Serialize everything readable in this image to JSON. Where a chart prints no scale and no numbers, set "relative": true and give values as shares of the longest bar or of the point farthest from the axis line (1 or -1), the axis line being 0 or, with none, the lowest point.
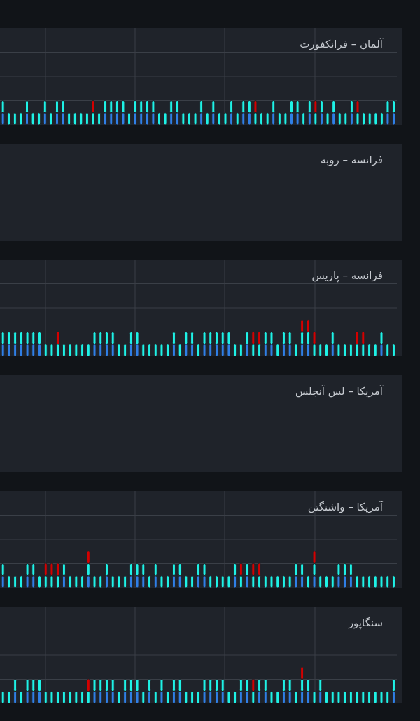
{
  "chart_data": [
    {
      "type": "bar",
      "title": "آلمان – فرانکفورت",
      "relative": true,
      "stacked": true,
      "grid": true,
      "legend": false,
      "categories": [
        null,
        null,
        null,
        null,
        null,
        null,
        null,
        null,
        null,
        null,
        null,
        null,
        null,
        null,
        null,
        null,
        null,
        null,
        null,
        null,
        null,
        null,
        null,
        null,
        null,
        null,
        null,
        null,
        null,
        null,
        null,
        null,
        null,
        null,
        null,
        null,
        null,
        null,
        null,
        null,
        null,
        null,
        null,
        null,
        null,
        null,
        null,
        null,
        null,
        null,
        null,
        null,
        null,
        null,
        null,
        null,
        null,
        null,
        null,
        null,
        null,
        null,
        null,
        null,
        null,
        null
      ],
      "series": [
        {
          "color": "#2f7fe6",
          "values": [
            0.5,
            null,
            null,
            null,
            0.5,
            null,
            null,
            0.5,
            null,
            0.5,
            0.5,
            null,
            null,
            null,
            null,
            null,
            null,
            0.5,
            0.5,
            0.5,
            0.5,
            null,
            0.5,
            0.5,
            0.5,
            0.5,
            null,
            null,
            0.5,
            0.5,
            null,
            null,
            null,
            0.5,
            null,
            0.5,
            null,
            null,
            0.5,
            null,
            0.5,
            0.5,
            null,
            null,
            null,
            0.5,
            null,
            null,
            0.5,
            0.5,
            null,
            0.5,
            null,
            0.5,
            null,
            0.5,
            null,
            null,
            0.5,
            null,
            null,
            null,
            null,
            null,
            0.5,
            0.5
          ]
        },
        {
          "color": "#1ef2e6",
          "values": [
            0.5,
            0.5,
            0.5,
            0.5,
            0.5,
            0.5,
            0.5,
            0.5,
            0.5,
            0.5,
            0.5,
            0.5,
            0.5,
            0.5,
            0.5,
            0.5,
            0.5,
            0.5,
            0.5,
            0.5,
            0.5,
            0.5,
            0.5,
            0.5,
            0.5,
            0.5,
            0.5,
            0.5,
            0.5,
            0.5,
            0.5,
            0.5,
            0.5,
            0.5,
            0.5,
            0.5,
            0.5,
            0.5,
            0.5,
            0.5,
            0.5,
            0.5,
            0.5,
            0.5,
            0.5,
            0.5,
            0.5,
            0.5,
            0.5,
            0.5,
            0.5,
            0.5,
            0.5,
            0.5,
            0.5,
            0.5,
            0.5,
            0.5,
            0.5,
            0.5,
            0.5,
            0.5,
            0.5,
            0.5,
            0.5,
            0.5
          ]
        },
        {
          "color": "#d40000",
          "values": [
            null,
            null,
            null,
            null,
            null,
            null,
            null,
            null,
            null,
            null,
            null,
            null,
            null,
            null,
            null,
            0.5,
            null,
            null,
            null,
            null,
            null,
            null,
            null,
            null,
            null,
            null,
            null,
            null,
            null,
            null,
            null,
            null,
            null,
            null,
            null,
            null,
            null,
            null,
            null,
            null,
            null,
            null,
            0.5,
            null,
            null,
            null,
            null,
            null,
            null,
            null,
            null,
            null,
            0.5,
            null,
            null,
            null,
            null,
            null,
            null,
            0.5,
            null,
            null,
            null,
            null,
            null,
            null
          ]
        }
      ]
    },
    {
      "type": "other",
      "title": "فرانسه – روبه"
    },
    {
      "type": "bar",
      "title": "فرانسه – پاریس",
      "relative": true,
      "stacked": true,
      "grid": true,
      "legend": false,
      "categories": [
        null,
        null,
        null,
        null,
        null,
        null,
        null,
        null,
        null,
        null,
        null,
        null,
        null,
        null,
        null,
        null,
        null,
        null,
        null,
        null,
        null,
        null,
        null,
        null,
        null,
        null,
        null,
        null,
        null,
        null,
        null,
        null,
        null,
        null,
        null,
        null,
        null,
        null,
        null,
        null,
        null,
        null,
        null,
        null,
        null,
        null,
        null,
        null,
        null,
        null,
        null,
        null,
        null,
        null,
        null,
        null,
        null,
        null,
        null,
        null,
        null,
        null,
        null,
        null,
        null
      ],
      "series": [
        {
          "color": "#2f7fe6",
          "values": [
            0.33,
            0.33,
            0.33,
            0.33,
            0.33,
            0.33,
            0.33,
            null,
            null,
            null,
            null,
            null,
            null,
            null,
            null,
            0.33,
            0.33,
            0.33,
            0.33,
            null,
            null,
            0.33,
            0.33,
            null,
            null,
            null,
            null,
            null,
            0.33,
            null,
            0.33,
            0.33,
            null,
            0.33,
            0.33,
            0.33,
            0.33,
            0.33,
            null,
            null,
            0.33,
            null,
            null,
            0.33,
            0.33,
            null,
            0.33,
            0.33,
            null,
            0.33,
            0.33,
            null,
            null,
            null,
            0.33,
            null,
            null,
            null,
            null,
            null,
            null,
            null,
            0.33,
            null,
            null
          ]
        },
        {
          "color": "#1ef2e6",
          "values": [
            0.33,
            0.33,
            0.33,
            0.33,
            0.33,
            0.33,
            0.33,
            0.33,
            0.33,
            0.33,
            0.33,
            0.33,
            0.33,
            0.33,
            0.33,
            0.33,
            0.33,
            0.33,
            0.33,
            0.33,
            0.33,
            0.33,
            0.33,
            0.33,
            0.33,
            0.33,
            0.33,
            0.33,
            0.33,
            0.33,
            0.33,
            0.33,
            0.33,
            0.33,
            0.33,
            0.33,
            0.33,
            0.33,
            0.33,
            0.33,
            0.33,
            0.33,
            0.33,
            0.33,
            0.33,
            0.33,
            0.33,
            0.33,
            0.33,
            0.33,
            0.33,
            0.33,
            0.33,
            0.33,
            0.33,
            0.33,
            0.33,
            0.33,
            0.33,
            0.33,
            0.33,
            0.33,
            0.33,
            0.33,
            0.33
          ]
        },
        {
          "color": "#d40000",
          "values": [
            null,
            null,
            null,
            null,
            null,
            null,
            null,
            null,
            null,
            0.34,
            null,
            null,
            null,
            null,
            null,
            null,
            null,
            null,
            null,
            null,
            null,
            null,
            null,
            null,
            null,
            null,
            null,
            null,
            null,
            null,
            null,
            null,
            null,
            null,
            null,
            null,
            null,
            null,
            null,
            null,
            null,
            0.34,
            0.34,
            null,
            null,
            null,
            null,
            null,
            null,
            0.34,
            0.34,
            0.34,
            null,
            null,
            null,
            null,
            null,
            null,
            0.34,
            0.34,
            null,
            null,
            null,
            null,
            null
          ]
        }
      ]
    },
    {
      "type": "other",
      "title": "آمریکا – لس آنجلس"
    },
    {
      "type": "bar",
      "title": "آمریکا – واشنگتن",
      "relative": true,
      "stacked": true,
      "grid": true,
      "legend": false,
      "categories": [
        null,
        null,
        null,
        null,
        null,
        null,
        null,
        null,
        null,
        null,
        null,
        null,
        null,
        null,
        null,
        null,
        null,
        null,
        null,
        null,
        null,
        null,
        null,
        null,
        null,
        null,
        null,
        null,
        null,
        null,
        null,
        null,
        null,
        null,
        null,
        null,
        null,
        null,
        null,
        null,
        null,
        null,
        null,
        null,
        null,
        null,
        null,
        null,
        null,
        null,
        null,
        null,
        null,
        null,
        null,
        null,
        null,
        null,
        null,
        null,
        null,
        null,
        null,
        null,
        null
      ],
      "series": [
        {
          "color": "#2f7fe6",
          "values": [
            0.33,
            null,
            null,
            null,
            0.33,
            0.33,
            null,
            null,
            null,
            null,
            0.33,
            null,
            null,
            null,
            0.33,
            null,
            null,
            0.33,
            null,
            null,
            null,
            0.33,
            0.33,
            0.33,
            null,
            0.33,
            null,
            null,
            0.33,
            0.33,
            null,
            null,
            0.33,
            0.33,
            null,
            null,
            null,
            null,
            0.33,
            null,
            0.33,
            null,
            null,
            null,
            null,
            null,
            null,
            null,
            0.33,
            0.33,
            null,
            0.33,
            null,
            null,
            null,
            0.33,
            0.33,
            0.33,
            null,
            null,
            null,
            null,
            null,
            null,
            null
          ]
        },
        {
          "color": "#1ef2e6",
          "values": [
            0.33,
            0.33,
            0.33,
            0.33,
            0.33,
            0.33,
            0.33,
            0.33,
            0.33,
            0.33,
            0.33,
            0.33,
            0.33,
            0.33,
            0.33,
            0.33,
            0.33,
            0.33,
            0.33,
            0.33,
            0.33,
            0.33,
            0.33,
            0.33,
            0.33,
            0.33,
            0.33,
            0.33,
            0.33,
            0.33,
            0.33,
            0.33,
            0.33,
            0.33,
            0.33,
            0.33,
            0.33,
            0.33,
            0.33,
            0.33,
            0.33,
            0.33,
            0.33,
            0.33,
            0.33,
            0.33,
            0.33,
            0.33,
            0.33,
            0.33,
            0.33,
            0.33,
            0.33,
            0.33,
            0.33,
            0.33,
            0.33,
            0.33,
            0.33,
            0.33,
            0.33,
            0.33,
            0.33,
            0.33,
            0.33
          ]
        },
        {
          "color": "#d40000",
          "values": [
            null,
            null,
            null,
            null,
            null,
            null,
            null,
            0.34,
            0.34,
            0.34,
            null,
            null,
            null,
            null,
            0.34,
            null,
            null,
            null,
            null,
            null,
            null,
            null,
            null,
            null,
            null,
            null,
            null,
            null,
            null,
            null,
            null,
            null,
            null,
            null,
            null,
            null,
            null,
            null,
            null,
            0.34,
            null,
            0.34,
            0.34,
            null,
            null,
            null,
            null,
            null,
            null,
            null,
            null,
            0.34,
            null,
            null,
            null,
            null,
            null,
            null,
            null,
            null,
            null,
            null,
            null,
            null,
            null
          ]
        }
      ]
    },
    {
      "type": "bar",
      "title": "سنگاپور",
      "relative": true,
      "stacked": true,
      "grid": true,
      "legend": false,
      "categories": [
        null,
        null,
        null,
        null,
        null,
        null,
        null,
        null,
        null,
        null,
        null,
        null,
        null,
        null,
        null,
        null,
        null,
        null,
        null,
        null,
        null,
        null,
        null,
        null,
        null,
        null,
        null,
        null,
        null,
        null,
        null,
        null,
        null,
        null,
        null,
        null,
        null,
        null,
        null,
        null,
        null,
        null,
        null,
        null,
        null,
        null,
        null,
        null,
        null,
        null,
        null,
        null,
        null,
        null,
        null,
        null,
        null,
        null,
        null,
        null,
        null,
        null,
        null,
        null,
        null
      ],
      "series": [
        {
          "color": "#2f7fe6",
          "values": [
            null,
            null,
            0.33,
            null,
            0.33,
            0.33,
            0.33,
            null,
            null,
            null,
            null,
            null,
            null,
            null,
            null,
            0.33,
            0.33,
            0.33,
            0.33,
            null,
            0.33,
            0.33,
            0.33,
            null,
            0.33,
            null,
            0.33,
            null,
            0.33,
            0.33,
            null,
            null,
            null,
            0.33,
            0.33,
            0.33,
            0.33,
            null,
            null,
            0.33,
            0.33,
            null,
            0.33,
            0.33,
            null,
            null,
            0.33,
            0.33,
            null,
            0.33,
            0.33,
            null,
            0.33,
            null,
            null,
            null,
            null,
            null,
            null,
            null,
            null,
            null,
            null,
            null,
            0.33
          ]
        },
        {
          "color": "#1ef2e6",
          "values": [
            0.33,
            0.33,
            0.33,
            0.33,
            0.33,
            0.33,
            0.33,
            0.33,
            0.33,
            0.33,
            0.33,
            0.33,
            0.33,
            0.33,
            0.33,
            0.33,
            0.33,
            0.33,
            0.33,
            0.33,
            0.33,
            0.33,
            0.33,
            0.33,
            0.33,
            0.33,
            0.33,
            0.33,
            0.33,
            0.33,
            0.33,
            0.33,
            0.33,
            0.33,
            0.33,
            0.33,
            0.33,
            0.33,
            0.33,
            0.33,
            0.33,
            0.33,
            0.33,
            0.33,
            0.33,
            0.33,
            0.33,
            0.33,
            0.33,
            0.33,
            0.33,
            0.33,
            0.33,
            0.33,
            0.33,
            0.33,
            0.33,
            0.33,
            0.33,
            0.33,
            0.33,
            0.33,
            0.33,
            0.33,
            0.33
          ]
        },
        {
          "color": "#d40000",
          "values": [
            null,
            null,
            null,
            null,
            null,
            null,
            null,
            null,
            null,
            null,
            null,
            null,
            null,
            null,
            0.34,
            null,
            null,
            null,
            null,
            null,
            null,
            null,
            null,
            null,
            null,
            null,
            null,
            null,
            null,
            null,
            null,
            null,
            null,
            null,
            null,
            null,
            null,
            null,
            null,
            null,
            null,
            0.34,
            null,
            null,
            null,
            null,
            null,
            null,
            null,
            0.34,
            null,
            null,
            null,
            null,
            null,
            null,
            null,
            null,
            null,
            null,
            null,
            null,
            null,
            null,
            null
          ]
        }
      ]
    }
  ]
}
